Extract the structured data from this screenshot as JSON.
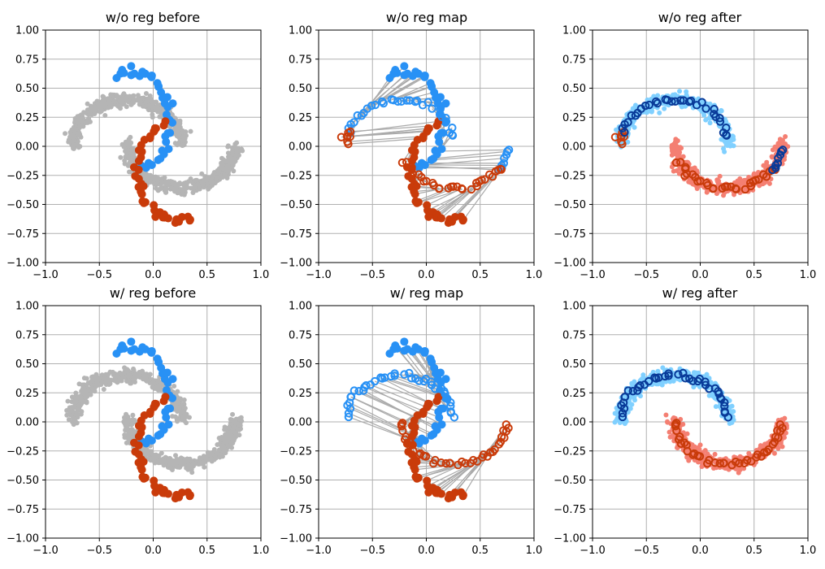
{
  "colors": {
    "gray": "#b5b5b5",
    "blue": "#2891f5",
    "red": "#c93b0a",
    "light_blue": "#80d0ff",
    "salmon": "#f47f72",
    "dark_blue": "#083a99",
    "line_gray": "#aaaaaa"
  },
  "axis": {
    "xlim": [
      -1.0,
      1.0
    ],
    "ylim": [
      -1.0,
      1.0
    ],
    "xticks": [
      "−1.0",
      "−0.5",
      "0.0",
      "0.5",
      "1.0"
    ],
    "yticks": [
      "−1.00",
      "−0.75",
      "−0.50",
      "−0.25",
      "0.00",
      "0.25",
      "0.50",
      "0.75",
      "1.00"
    ],
    "xtick_values": [
      -1.0,
      -0.5,
      0.0,
      0.5,
      1.0
    ],
    "ytick_values": [
      -1.0,
      -0.75,
      -0.5,
      -0.25,
      0.0,
      0.25,
      0.5,
      0.75,
      1.0
    ],
    "grid": true
  },
  "chart_data": [
    {
      "type": "scatter",
      "title": "w/o reg before",
      "series": [
        {
          "kind": "cloud",
          "color": "gray"
        },
        {
          "kind": "source",
          "color": "blue",
          "moon": "upper",
          "offset": [
            0,
            0
          ]
        },
        {
          "kind": "source",
          "color": "red",
          "moon": "lower",
          "offset": [
            0,
            0
          ]
        }
      ]
    },
    {
      "type": "scatter",
      "title": "w/o reg map",
      "series": [
        {
          "kind": "map_lines",
          "color": "line_gray",
          "mode": "crossed"
        },
        {
          "kind": "source",
          "color": "blue",
          "moon": "upper",
          "offset": [
            0,
            0
          ]
        },
        {
          "kind": "source",
          "color": "red",
          "moon": "lower",
          "offset": [
            0,
            0
          ]
        },
        {
          "kind": "mapped",
          "color": "blue",
          "mode": "crossed_upper"
        },
        {
          "kind": "mapped",
          "color": "red",
          "mode": "crossed_lower"
        }
      ]
    },
    {
      "type": "scatter",
      "title": "w/o reg after",
      "series": [
        {
          "kind": "target_moon",
          "color": "light_blue",
          "moon": "upper"
        },
        {
          "kind": "target_moon",
          "color": "salmon",
          "moon": "lower"
        },
        {
          "kind": "mapped",
          "color": "red",
          "mode": "crossed_lower"
        },
        {
          "kind": "mapped",
          "color": "dark_blue",
          "mode": "crossed_upper"
        }
      ]
    },
    {
      "type": "scatter",
      "title": "w/ reg before",
      "series": [
        {
          "kind": "cloud",
          "color": "gray"
        },
        {
          "kind": "source",
          "color": "blue",
          "moon": "upper",
          "offset": [
            0,
            0
          ]
        },
        {
          "kind": "source",
          "color": "red",
          "moon": "lower",
          "offset": [
            0,
            0
          ]
        }
      ]
    },
    {
      "type": "scatter",
      "title": "w/ reg map",
      "series": [
        {
          "kind": "map_lines",
          "color": "line_gray",
          "mode": "aligned"
        },
        {
          "kind": "source",
          "color": "blue",
          "moon": "upper",
          "offset": [
            0,
            0
          ]
        },
        {
          "kind": "source",
          "color": "red",
          "moon": "lower",
          "offset": [
            0,
            0
          ]
        },
        {
          "kind": "mapped",
          "color": "blue",
          "mode": "aligned_upper"
        },
        {
          "kind": "mapped",
          "color": "red",
          "mode": "aligned_lower"
        }
      ]
    },
    {
      "type": "scatter",
      "title": "w/ reg after",
      "series": [
        {
          "kind": "target_moon",
          "color": "light_blue",
          "moon": "upper"
        },
        {
          "kind": "target_moon",
          "color": "salmon",
          "moon": "lower"
        },
        {
          "kind": "mapped",
          "color": "dark_blue",
          "mode": "aligned_upper"
        },
        {
          "kind": "mapped",
          "color": "red",
          "mode": "aligned_lower"
        }
      ]
    }
  ]
}
